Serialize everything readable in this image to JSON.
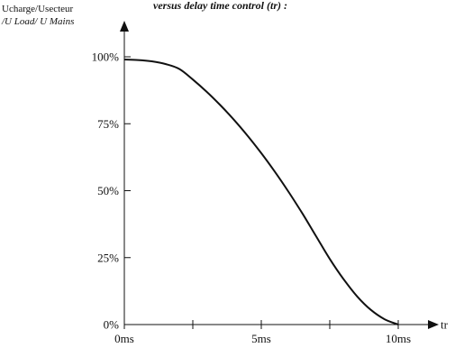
{
  "chart_data": {
    "type": "line",
    "title": "versus delay time control (tr) :",
    "ylabel_lines": [
      "Ucharge/Usecteur",
      "/U Load/ U Mains"
    ],
    "xlabel": "tr",
    "xlim": [
      0,
      10
    ],
    "ylim": [
      0,
      100
    ],
    "x_ticks": [
      0,
      5,
      10
    ],
    "x_tick_labels": [
      "0ms",
      "5ms",
      "10ms"
    ],
    "x_minor_ticks": [
      2.5,
      7.5
    ],
    "y_ticks": [
      0,
      25,
      50,
      75,
      100
    ],
    "y_tick_labels": [
      "0%",
      "25%",
      "50%",
      "75%",
      "100%"
    ],
    "grid": false,
    "series": [
      {
        "x": [
          0,
          0.5,
          1.0,
          1.5,
          2.0,
          2.5,
          3.0,
          3.5,
          4.0,
          4.5,
          5.0,
          5.5,
          6.0,
          6.5,
          7.0,
          7.5,
          8.0,
          8.5,
          9.0,
          9.5,
          10.0
        ],
        "y": [
          99,
          98.8,
          98.3,
          97.3,
          95.5,
          91.5,
          87,
          82,
          76.5,
          70.5,
          64,
          57,
          49.5,
          41.5,
          33,
          24.5,
          17,
          10.5,
          5.5,
          2,
          0
        ]
      }
    ]
  }
}
